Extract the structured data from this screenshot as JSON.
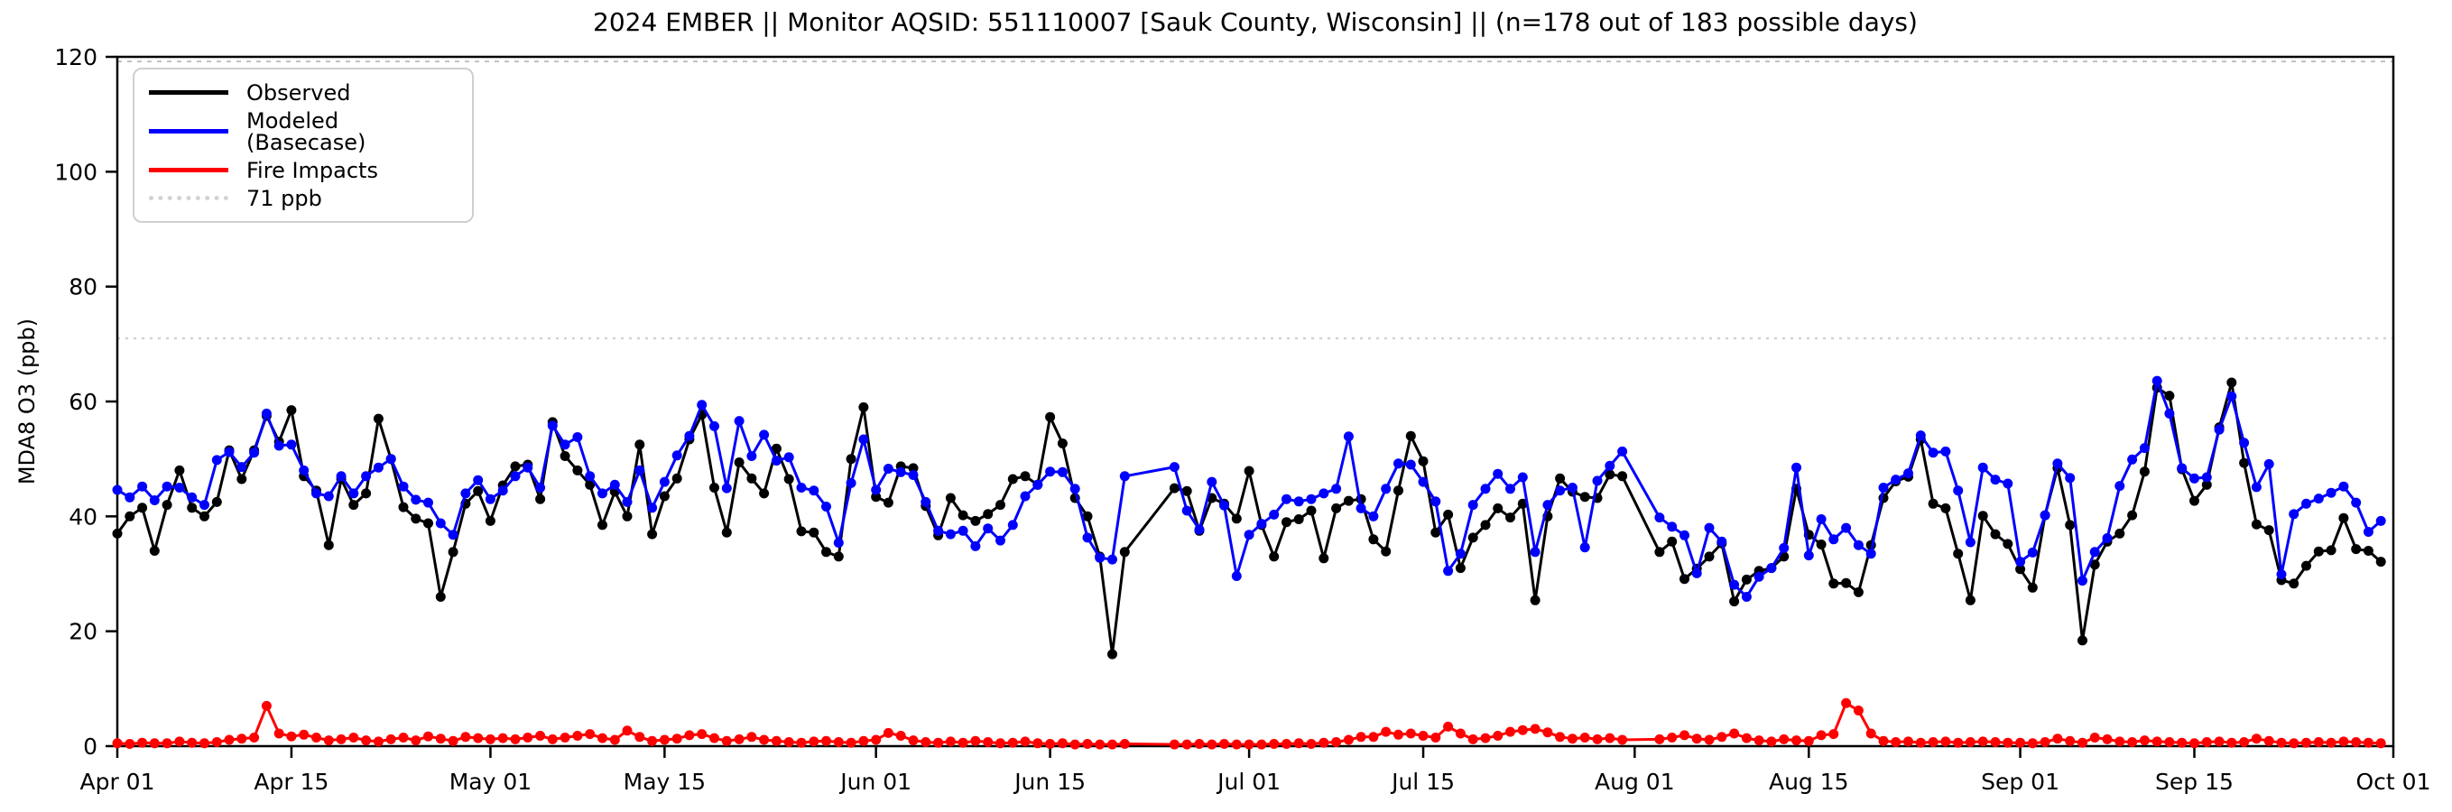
{
  "header": {
    "title": "2024 EMBER || Monitor AQSID: 551110007 [Sauk County, Wisconsin] || (n=178 out of 183 possible days)"
  },
  "chart_data": {
    "type": "line",
    "title": "2024 EMBER || Monitor AQSID: 551110007 [Sauk County, Wisconsin] || (n=178 out of 183 possible days)",
    "xlabel": "",
    "ylabel": "MDA8 O3 (ppb)",
    "ylim": [
      0,
      120
    ],
    "y_ticks": [
      0,
      20,
      40,
      60,
      80,
      100,
      120
    ],
    "grid": false,
    "legend_position": "upper left",
    "days": 183,
    "x_ticks": [
      {
        "day": 0,
        "label": "Apr 01"
      },
      {
        "day": 14,
        "label": "Apr 15"
      },
      {
        "day": 30,
        "label": "May 01"
      },
      {
        "day": 44,
        "label": "May 15"
      },
      {
        "day": 61,
        "label": "Jun 01"
      },
      {
        "day": 75,
        "label": "Jun 15"
      },
      {
        "day": 91,
        "label": "Jul 01"
      },
      {
        "day": 105,
        "label": "Jul 15"
      },
      {
        "day": 122,
        "label": "Aug 01"
      },
      {
        "day": 136,
        "label": "Aug 15"
      },
      {
        "day": 153,
        "label": "Sep 01"
      },
      {
        "day": 167,
        "label": "Sep 15"
      },
      {
        "day": 183,
        "label": "Oct 01"
      }
    ],
    "threshold": {
      "value": 71,
      "label": "71 ppb",
      "color": "#d3d3d3"
    },
    "topline": {
      "value": 119.2,
      "color": "#c0c0c0"
    },
    "series": [
      {
        "name": "Observed",
        "color": "#000000",
        "values": [
          37,
          40,
          41.5,
          34,
          42,
          48,
          41.5,
          40,
          42.5,
          51.5,
          46.5,
          51.5,
          57.5,
          53,
          58.5,
          47,
          44.5,
          35,
          46.5,
          42,
          44,
          57,
          50,
          41.6,
          39.6,
          38.8,
          26,
          33.8,
          42.2,
          44.4,
          39.2,
          45.4,
          48.7,
          49,
          43,
          56.4,
          50.5,
          48,
          45.5,
          38.5,
          44.3,
          40,
          52.5,
          36.9,
          43.5,
          46.6,
          53.4,
          57.7,
          45,
          37.2,
          49.4,
          46.6,
          44,
          51.8,
          46.5,
          37.4,
          37.2,
          33.8,
          33,
          50,
          59,
          43.4,
          42.4,
          48.7,
          48.4,
          41.8,
          36.7,
          43.2,
          40.2,
          39.2,
          40.4,
          42,
          46.5,
          47,
          45.5,
          57.3,
          52.7,
          43.2,
          40,
          33,
          16,
          33.8,
          null,
          null,
          null,
          44.9,
          44.4,
          37.5,
          43.2,
          42.2,
          39.6,
          47.9,
          38.5,
          33,
          39,
          39.5,
          41,
          32.7,
          41.4,
          42.7,
          43,
          36,
          33.9,
          44.5,
          54,
          49.6,
          37.2,
          40.3,
          31,
          36.3,
          38.5,
          41.4,
          39.8,
          42.2,
          25.4,
          40,
          46.6,
          44.3,
          43.4,
          43.2,
          47.3,
          47,
          null,
          null,
          33.8,
          35.6,
          29.1,
          30.9,
          33,
          35.3,
          25.2,
          29,
          30.5,
          31,
          33,
          44.8,
          36.8,
          35.1,
          28.3,
          28.4,
          26.8,
          35,
          43.2,
          46.1,
          46.9,
          53.4,
          42.2,
          41.4,
          33.5,
          25.4,
          40.1,
          36.9,
          35.2,
          30.8,
          27.6,
          40.2,
          48.4,
          38.5,
          18.4,
          31.6,
          35.6,
          37,
          40.2,
          47.8,
          62.4,
          61,
          48.2,
          42.7,
          45.5,
          55.5,
          63.3,
          49.3,
          38.6,
          37.6,
          28.9,
          28.3,
          31.4,
          33.9,
          34.1,
          39.7,
          34.3,
          34,
          32.1
        ]
      },
      {
        "name": "Modeled (Basecase)",
        "color": "#0000ff",
        "values": [
          44.6,
          43.3,
          45.2,
          42.8,
          45.2,
          45,
          43.3,
          42,
          49.8,
          51.2,
          48.6,
          51.1,
          57.9,
          52.3,
          52.5,
          48,
          44,
          43.5,
          47,
          44,
          47,
          48.5,
          50,
          45.2,
          42.9,
          42.4,
          38.8,
          36.8,
          44,
          46.3,
          43,
          44.5,
          47,
          48.5,
          45,
          55.8,
          52.5,
          53.8,
          47,
          44,
          45.5,
          42.5,
          48,
          41.5,
          46,
          50.6,
          54,
          59.4,
          55.7,
          44.9,
          56.6,
          50.5,
          54.2,
          49.7,
          50.3,
          45,
          44.5,
          41.7,
          35.4,
          45.8,
          53.4,
          44.6,
          48.3,
          47.7,
          47.2,
          42.5,
          37.5,
          36.9,
          37.5,
          34.8,
          37.9,
          35.8,
          38.5,
          43.5,
          45.5,
          47.8,
          47.7,
          44.8,
          36.3,
          32.8,
          32.5,
          47,
          null,
          null,
          null,
          48.6,
          41,
          37.7,
          46,
          41.9,
          29.6,
          36.8,
          38.7,
          40.3,
          43,
          42.6,
          43,
          44,
          44.8,
          53.9,
          41.4,
          40,
          44.8,
          49.2,
          49,
          46,
          42.6,
          30.5,
          33.5,
          42,
          44.8,
          47.4,
          44.8,
          46.8,
          33.8,
          42,
          44.5,
          45,
          34.6,
          46.2,
          48.8,
          51.3,
          null,
          null,
          39.8,
          38.2,
          36.7,
          30.1,
          38,
          35.6,
          28.1,
          26,
          29.5,
          31,
          34.5,
          48.5,
          33.2,
          39.5,
          36,
          38,
          35,
          33.5,
          45,
          46.4,
          47.5,
          54.1,
          51.1,
          51.3,
          44.5,
          35.5,
          48.5,
          46.4,
          45.7,
          32.1,
          33.7,
          40.2,
          49.2,
          46.7,
          28.8,
          33.8,
          36.2,
          45.3,
          49.9,
          51.9,
          63.6,
          57.9,
          48.4,
          46.6,
          46.8,
          55.1,
          60.9,
          52.8,
          45.1,
          49.1,
          29.9,
          40.4,
          42.2,
          43.1,
          44.1,
          45.2,
          42.4,
          37.3,
          39.2
        ]
      },
      {
        "name": "Fire Impacts",
        "color": "#ff0000",
        "values": [
          0.5,
          0.4,
          0.6,
          0.5,
          0.5,
          0.8,
          0.6,
          0.5,
          0.7,
          1.1,
          1.3,
          1.5,
          7,
          2.2,
          1.7,
          2,
          1.5,
          1,
          1.2,
          1.5,
          1,
          0.8,
          1.2,
          1.5,
          1,
          1.7,
          1.3,
          0.9,
          1.6,
          1.4,
          1.2,
          1.4,
          1.2,
          1.5,
          1.8,
          1.2,
          1.5,
          1.8,
          2.1,
          1.4,
          1.1,
          2.7,
          1.6,
          0.9,
          1.1,
          1.3,
          1.9,
          2.1,
          1.4,
          0.9,
          1.2,
          1.6,
          1.1,
          0.9,
          0.7,
          0.6,
          0.8,
          0.9,
          0.7,
          0.6,
          0.9,
          1.1,
          2.3,
          1.8,
          1,
          0.7,
          0.6,
          0.8,
          0.6,
          0.9,
          0.7,
          0.5,
          0.6,
          0.8,
          0.5,
          0.4,
          0.5,
          0.3,
          0.4,
          0.3,
          0.3,
          0.4,
          null,
          null,
          null,
          0.3,
          0.3,
          0.4,
          0.3,
          0.4,
          0.3,
          0.3,
          0.3,
          0.4,
          0.4,
          0.5,
          0.4,
          0.6,
          0.7,
          1.1,
          1.6,
          1.6,
          2.5,
          2,
          2.2,
          1.8,
          1.5,
          3.4,
          2.2,
          1.2,
          1.4,
          1.8,
          2.5,
          2.8,
          3,
          2.4,
          1.6,
          1.3,
          1.5,
          1.2,
          1.4,
          1.1,
          null,
          null,
          1.2,
          1.5,
          1.9,
          1.3,
          1.1,
          1.6,
          2.2,
          1.4,
          1,
          0.8,
          1.2,
          1,
          0.9,
          1.9,
          2.1,
          7.5,
          6.2,
          2.2,
          0.9,
          0.7,
          0.8,
          0.6,
          0.7,
          0.8,
          0.6,
          0.7,
          0.8,
          0.7,
          0.6,
          0.6,
          0.5,
          0.7,
          1.3,
          0.9,
          0.6,
          1.5,
          1.2,
          0.8,
          0.7,
          1,
          0.8,
          0.7,
          0.6,
          0.5,
          0.7,
          0.8,
          0.6,
          0.7,
          1.3,
          0.9,
          0.6,
          0.5,
          0.6,
          0.7,
          0.6,
          0.8,
          0.7,
          0.6,
          0.5
        ]
      }
    ]
  }
}
